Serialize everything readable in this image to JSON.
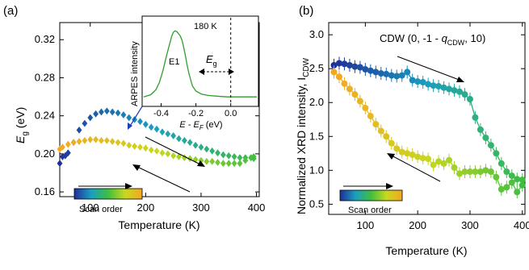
{
  "chart_data": [
    {
      "panel_label": "(a)",
      "type": "scatter",
      "xlabel": "Temperature (K)",
      "ylabel": "E_g (eV)",
      "xlim": [
        45,
        405
      ],
      "ylim": [
        0.155,
        0.338
      ],
      "xticks": [
        100,
        200,
        300,
        400
      ],
      "yticks": [
        0.16,
        0.2,
        0.24,
        0.28,
        0.32
      ],
      "colorbar_label": "Scan order",
      "colors": {
        "scan_start": "#1f2f9a",
        "scan_mid1": "#1a9fc0",
        "scan_mid2": "#3fbf3f",
        "scan_mid3": "#c8d820",
        "scan_end": "#f5a623"
      },
      "series": [
        {
          "segment": "heating-upper",
          "x": [
            45,
            50,
            55,
            60,
            70,
            80,
            90,
            100,
            110,
            120,
            130,
            140,
            150,
            160,
            170,
            180,
            190,
            200,
            210,
            220,
            230,
            240,
            250,
            260,
            270,
            280,
            290,
            300,
            310,
            320,
            330,
            340,
            350,
            360,
            370,
            380,
            390,
            395
          ],
          "y": [
            0.19,
            0.197,
            0.198,
            0.201,
            0.212,
            0.225,
            0.232,
            0.238,
            0.242,
            0.244,
            0.245,
            0.244,
            0.243,
            0.241,
            0.238,
            0.236,
            0.234,
            0.231,
            0.228,
            0.226,
            0.223,
            0.221,
            0.219,
            0.216,
            0.214,
            0.212,
            0.209,
            0.207,
            0.205,
            0.203,
            0.201,
            0.199,
            0.198,
            0.197,
            0.196,
            0.196,
            0.196,
            0.195
          ],
          "order_start": 0.0,
          "order_end": 0.5
        },
        {
          "segment": "cooling-lower",
          "x": [
            395,
            390,
            380,
            370,
            360,
            350,
            340,
            330,
            320,
            310,
            300,
            290,
            280,
            270,
            260,
            250,
            240,
            230,
            220,
            210,
            200,
            190,
            180,
            170,
            160,
            150,
            140,
            130,
            120,
            110,
            100,
            90,
            80,
            70,
            60,
            50,
            45
          ],
          "y": [
            0.197,
            0.196,
            0.193,
            0.19,
            0.19,
            0.19,
            0.19,
            0.191,
            0.192,
            0.192,
            0.193,
            0.194,
            0.195,
            0.196,
            0.197,
            0.198,
            0.2,
            0.201,
            0.203,
            0.204,
            0.206,
            0.207,
            0.208,
            0.209,
            0.211,
            0.212,
            0.213,
            0.214,
            0.214,
            0.215,
            0.215,
            0.214,
            0.213,
            0.212,
            0.21,
            0.207,
            0.205
          ],
          "order_start": 0.5,
          "order_end": 1.0
        }
      ],
      "inset": {
        "xlabel": "E - E_F (eV)",
        "ylabel": "ARPES intensity",
        "xlim": [
          -0.5,
          0.15
        ],
        "xticks": [
          -0.4,
          -0.2,
          0.0
        ],
        "annotations": [
          "180 K",
          "E1",
          "E_g"
        ],
        "curve_color": "#2e9e2e",
        "x": [
          -0.5,
          -0.46,
          -0.43,
          -0.41,
          -0.39,
          -0.37,
          -0.35,
          -0.34,
          -0.33,
          -0.32,
          -0.31,
          -0.3,
          -0.29,
          -0.28,
          -0.27,
          -0.26,
          -0.25,
          -0.24,
          -0.23,
          -0.22,
          -0.2,
          -0.17,
          -0.13,
          -0.08,
          -0.02,
          0.04,
          0.1,
          0.15
        ],
        "y": [
          0.02,
          0.05,
          0.12,
          0.22,
          0.38,
          0.58,
          0.76,
          0.85,
          0.91,
          0.93,
          0.92,
          0.89,
          0.86,
          0.8,
          0.7,
          0.58,
          0.45,
          0.34,
          0.25,
          0.17,
          0.1,
          0.06,
          0.04,
          0.03,
          0.02,
          0.02,
          0.02,
          0.02
        ]
      }
    },
    {
      "panel_label": "(b)",
      "type": "line",
      "title": "CDW (0, -1 - q_CDW, 10)",
      "xlabel": "Temperature (K)",
      "ylabel": "Normalized XRD intensity, I_CDW",
      "xlim": [
        30,
        405
      ],
      "ylim": [
        0.35,
        3.18
      ],
      "xticks": [
        100,
        200,
        300,
        400
      ],
      "yticks": [
        0.5,
        1.0,
        1.5,
        2.0,
        2.5,
        3.0
      ],
      "colorbar_label": "Scan order",
      "series": [
        {
          "segment": "heating-upper",
          "x": [
            40,
            50,
            60,
            70,
            80,
            90,
            100,
            110,
            120,
            130,
            140,
            150,
            160,
            170,
            180,
            190,
            200,
            210,
            220,
            230,
            240,
            250,
            260,
            270,
            280,
            290,
            300,
            310,
            320,
            330,
            340,
            350,
            360,
            370,
            380,
            390,
            400
          ],
          "y": [
            2.55,
            2.58,
            2.57,
            2.55,
            2.53,
            2.52,
            2.49,
            2.47,
            2.45,
            2.43,
            2.42,
            2.4,
            2.39,
            2.4,
            2.45,
            2.33,
            2.31,
            2.3,
            2.27,
            2.25,
            2.24,
            2.22,
            2.2,
            2.18,
            2.16,
            2.12,
            2.05,
            1.78,
            1.6,
            1.48,
            1.37,
            1.25,
            1.1,
            0.98,
            0.92,
            0.87,
            0.86
          ],
          "order_start": 0.0,
          "order_end": 0.5
        },
        {
          "segment": "cooling-lower",
          "x": [
            400,
            390,
            380,
            370,
            360,
            350,
            340,
            330,
            320,
            310,
            300,
            290,
            280,
            270,
            260,
            250,
            240,
            230,
            220,
            210,
            200,
            190,
            180,
            170,
            160,
            150,
            140,
            130,
            120,
            110,
            100,
            90,
            80,
            70,
            60,
            50,
            40
          ],
          "y": [
            0.78,
            0.68,
            0.82,
            0.75,
            0.72,
            0.9,
            0.98,
            1.0,
            0.98,
            0.98,
            0.98,
            0.98,
            0.95,
            1.04,
            1.15,
            1.1,
            1.13,
            1.08,
            1.17,
            1.18,
            1.2,
            1.23,
            1.25,
            1.27,
            1.32,
            1.4,
            1.5,
            1.58,
            1.68,
            1.8,
            1.92,
            2.02,
            2.12,
            2.2,
            2.28,
            2.38,
            2.45
          ],
          "order_start": 0.5,
          "order_end": 1.0
        }
      ]
    }
  ],
  "labels": {
    "a_panel": "(a)",
    "b_panel": "(b)",
    "a_xlabel": "Temperature (K)",
    "b_xlabel": "Temperature (K)",
    "a_ylabel_main": "E",
    "a_ylabel_sub": "g",
    "a_ylabel_unit": " (eV)",
    "b_ylabel_main": "Normalized XRD intensity, I",
    "b_ylabel_sub": "CDW",
    "b_title_pre": "CDW (0, -1 - ",
    "b_title_q": "q",
    "b_title_qsub": "CDW",
    "b_title_post": ", 10)",
    "a_scan": "Scan order",
    "b_scan": "Scan order",
    "inset_ylabel": "ARPES intensity",
    "inset_xlabel_main": "E - E",
    "inset_xlabel_sub": "F",
    "inset_xlabel_unit": " (eV)",
    "inset_temp": "180 K",
    "inset_peak": "E1",
    "inset_eg_main": "E",
    "inset_eg_sub": "g"
  }
}
